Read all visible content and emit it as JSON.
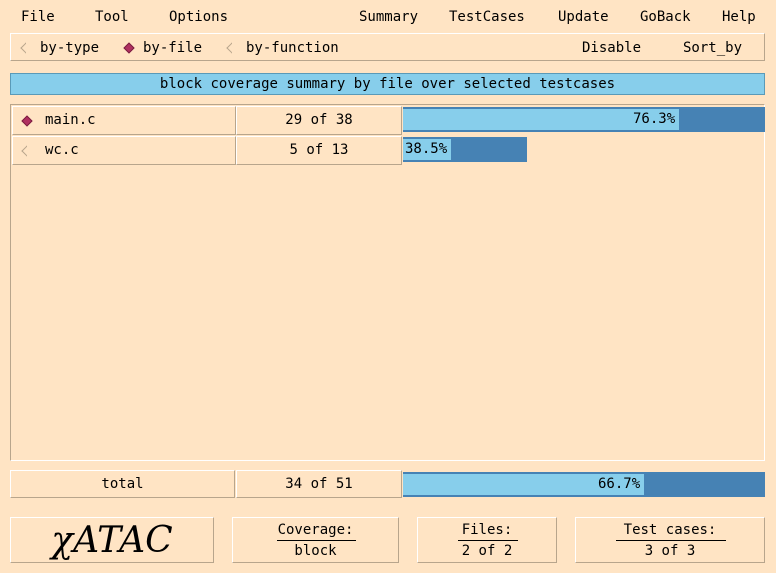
{
  "menubar": {
    "file": "File",
    "tool": "Tool",
    "options": "Options",
    "summary": "Summary",
    "testcases": "TestCases",
    "update": "Update",
    "goback": "GoBack",
    "help": "Help"
  },
  "view_mode": {
    "by_type": "by-type",
    "by_file": "by-file",
    "by_function": "by-function",
    "selected": "by-file",
    "disable": "Disable",
    "sort_by": "Sort_by"
  },
  "header": {
    "title": "block coverage summary by file over selected testcases"
  },
  "colors": {
    "background": "#ffe4c4",
    "bar_fill": "#87ceeb",
    "bar_total": "#4682b4",
    "selected_marker": "#b03060"
  },
  "rows": [
    {
      "name": "main.c",
      "count": "29 of 38",
      "percent_label": "76.3%",
      "covered": 29,
      "total": 38,
      "selected": true
    },
    {
      "name": "wc.c",
      "count": "5 of 13",
      "percent_label": "38.5%",
      "covered": 5,
      "total": 13,
      "selected": false
    }
  ],
  "total_row": {
    "label": "total",
    "count": "34 of 51",
    "percent_label": "66.7%",
    "covered": 34,
    "total": 51
  },
  "footer": {
    "logo": "χATAC",
    "coverage_title": "Coverage:",
    "coverage_value": "block",
    "files_title": "Files:",
    "files_value": "2 of 2",
    "testcases_title": "Test cases:",
    "testcases_value": "3 of 3"
  }
}
